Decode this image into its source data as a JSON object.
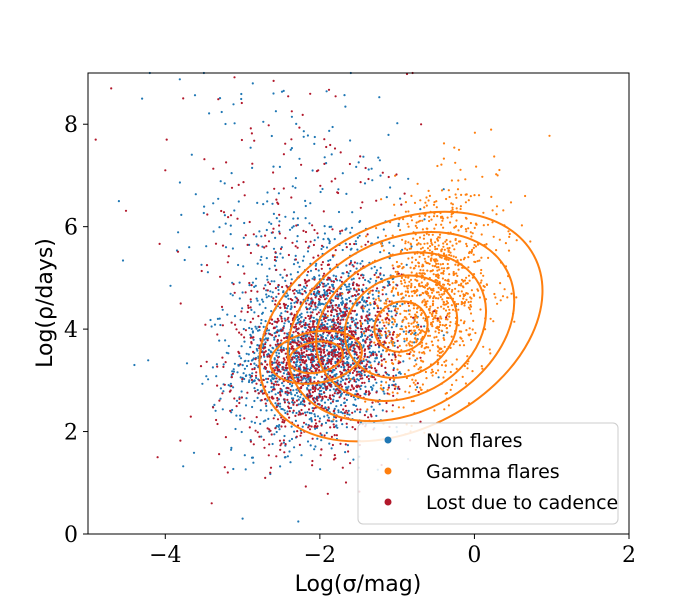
{
  "chart_data": {
    "type": "scatter",
    "xlabel": "Log(σ/mag)",
    "ylabel": "Log(ρ/days)",
    "xlim": [
      -5,
      2
    ],
    "ylim": [
      0,
      9
    ],
    "x_ticks": [
      -4,
      -2,
      0,
      2
    ],
    "y_ticks": [
      0,
      2,
      4,
      6,
      8
    ],
    "x_tick_labels": [
      "−4",
      "−2",
      "0",
      "2"
    ],
    "y_tick_labels": [
      "0",
      "2",
      "4",
      "6",
      "8"
    ],
    "grid": false,
    "legend_position": "lower-right",
    "series": [
      {
        "name": "Non flares",
        "color": "#1f77b4",
        "cloud": {
          "center": [
            -2.0,
            3.6
          ],
          "spread": [
            0.55,
            0.85
          ],
          "count": 1900,
          "upper_tail_fraction": 0.12
        },
        "points": [
          [
            -4.3,
            8.5
          ],
          [
            -4.6,
            6.5
          ],
          [
            -4.4,
            3.3
          ],
          [
            -3.0,
            0.3
          ],
          [
            -1.0,
            2.0
          ],
          [
            -2.6,
            8.6
          ],
          [
            -1.6,
            9.0
          ],
          [
            -3.5,
            9.0
          ],
          [
            -4.2,
            9.0
          ]
        ]
      },
      {
        "name": "Gamma flares",
        "color": "#ff7f0e",
        "cloud": {
          "center": [
            -0.55,
            4.7
          ],
          "spread": [
            0.42,
            0.95
          ],
          "count": 1100,
          "upper_tail_fraction": 0.0
        },
        "points": [
          [
            0.45,
            5.8
          ],
          [
            -0.2,
            7.5
          ],
          [
            0.3,
            7.0
          ],
          [
            0.5,
            4.3
          ],
          [
            -1.5,
            4.6
          ]
        ]
      },
      {
        "name": "Lost due to cadence",
        "color": "#b2182b",
        "cloud": {
          "center": [
            -2.0,
            3.5
          ],
          "spread": [
            0.5,
            0.8
          ],
          "count": 1500,
          "upper_tail_fraction": 0.1
        },
        "points": [
          [
            -4.7,
            8.7
          ],
          [
            -4.9,
            7.7
          ],
          [
            -4.1,
            1.5
          ],
          [
            -3.4,
            0.6
          ],
          [
            -3.8,
            4.5
          ],
          [
            -0.8,
            9.0
          ],
          [
            -4.0,
            7.1
          ]
        ]
      }
    ],
    "contours": {
      "color": "#ff7f0e",
      "center": [
        -0.95,
        4.05
      ],
      "semi_axes": [
        [
          0.35,
          0.3
        ],
        [
          0.75,
          0.6
        ],
        [
          1.15,
          0.85
        ],
        [
          1.55,
          1.05
        ],
        [
          1.95,
          1.25
        ]
      ],
      "angle_deg": 28,
      "secondary_center": [
        -2.05,
        3.45
      ],
      "secondary_semi_axes": [
        [
          0.35,
          0.3
        ],
        [
          0.6,
          0.5
        ]
      ]
    }
  }
}
